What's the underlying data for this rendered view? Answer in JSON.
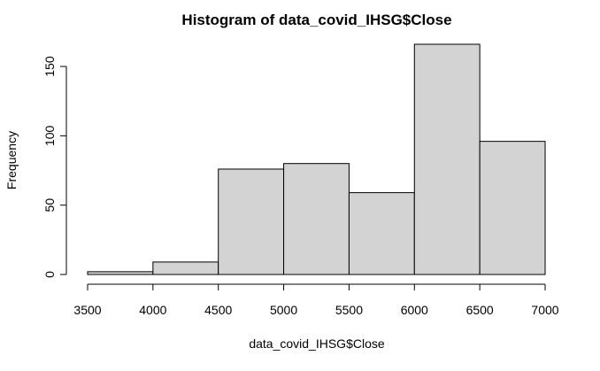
{
  "chart_data": {
    "type": "bar",
    "subtype": "histogram",
    "title": "Histogram of data_covid_IHSG$Close",
    "xlabel": "data_covid_IHSG$Close",
    "ylabel": "Frequency",
    "bins": [
      {
        "from": 3500,
        "to": 4000,
        "count": 2
      },
      {
        "from": 4000,
        "to": 4500,
        "count": 9
      },
      {
        "from": 4500,
        "to": 5000,
        "count": 76
      },
      {
        "from": 5000,
        "to": 5500,
        "count": 80
      },
      {
        "from": 5500,
        "to": 6000,
        "count": 59
      },
      {
        "from": 6000,
        "to": 6500,
        "count": 166
      },
      {
        "from": 6500,
        "to": 7000,
        "count": 96
      }
    ],
    "xlim": [
      3500,
      7000
    ],
    "ylim": [
      0,
      166
    ],
    "x_ticks": [
      3500,
      4000,
      4500,
      5000,
      5500,
      6000,
      6500,
      7000
    ],
    "y_ticks": [
      0,
      50,
      100,
      150
    ],
    "grid": false,
    "bar_color": "#d3d3d3",
    "edge_color": "#000000"
  }
}
